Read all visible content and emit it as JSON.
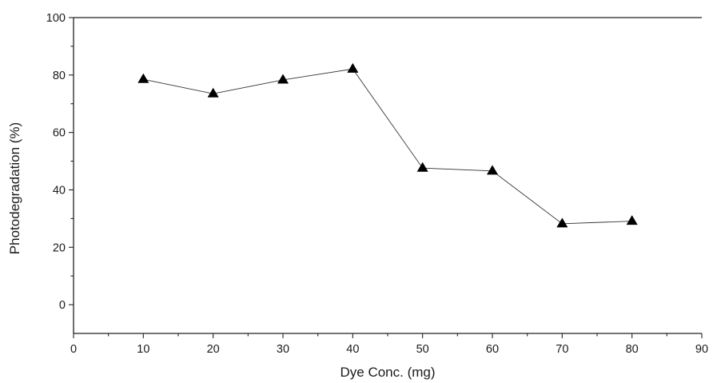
{
  "chart_data": {
    "type": "line",
    "title": "",
    "xlabel": "Dye Conc. (mg)",
    "ylabel": "Photodegradation (%)",
    "xlim": [
      0,
      90
    ],
    "ylim": [
      -10,
      100
    ],
    "x_ticks": [
      0,
      10,
      20,
      30,
      40,
      50,
      60,
      70,
      80,
      90
    ],
    "y_ticks": [
      0,
      20,
      40,
      60,
      80,
      100
    ],
    "x_tick_labels": [
      "0",
      "10",
      "20",
      "30",
      "40",
      "50",
      "60",
      "70",
      "80",
      "90"
    ],
    "y_tick_labels": [
      "0",
      "20",
      "40",
      "60",
      "80",
      "100"
    ],
    "grid": false,
    "legend": "none",
    "marker": "triangle-up",
    "colors": {
      "line": "#333333",
      "marker": "#000000",
      "axis": "#222222"
    },
    "series": [
      {
        "x": [
          10,
          20,
          30,
          40,
          50,
          60,
          70,
          80
        ],
        "values": [
          78.5,
          73.5,
          78.3,
          82.1,
          47.6,
          46.6,
          28.2,
          29.1
        ]
      }
    ]
  }
}
